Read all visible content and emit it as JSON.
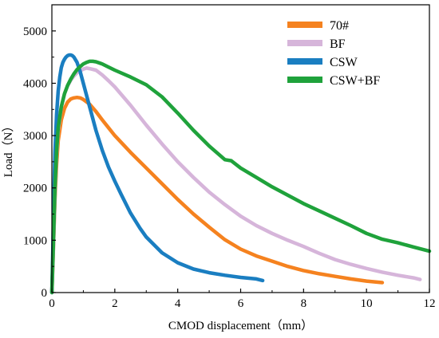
{
  "chart_data": {
    "type": "line",
    "title": "",
    "xlabel": "CMOD displacement（mm）",
    "ylabel": "Load（N）",
    "xlim": [
      0,
      12
    ],
    "ylim": [
      0,
      5500
    ],
    "xticks": [
      0,
      2,
      4,
      6,
      8,
      10,
      12
    ],
    "yticks": [
      0,
      1000,
      2000,
      3000,
      4000,
      5000
    ],
    "grid": false,
    "legend_position": "top-right",
    "series": [
      {
        "name": "70#",
        "color": "#F5821F",
        "points": [
          [
            0,
            0
          ],
          [
            0.05,
            900
          ],
          [
            0.1,
            1800
          ],
          [
            0.15,
            2450
          ],
          [
            0.2,
            2900
          ],
          [
            0.3,
            3300
          ],
          [
            0.4,
            3520
          ],
          [
            0.5,
            3640
          ],
          [
            0.6,
            3700
          ],
          [
            0.7,
            3720
          ],
          [
            0.8,
            3730
          ],
          [
            0.9,
            3720
          ],
          [
            1.0,
            3690
          ],
          [
            1.2,
            3600
          ],
          [
            1.4,
            3460
          ],
          [
            1.6,
            3300
          ],
          [
            1.8,
            3150
          ],
          [
            2.0,
            3000
          ],
          [
            2.5,
            2680
          ],
          [
            3.0,
            2380
          ],
          [
            3.5,
            2080
          ],
          [
            4.0,
            1780
          ],
          [
            4.5,
            1500
          ],
          [
            5.0,
            1250
          ],
          [
            5.5,
            1010
          ],
          [
            6.0,
            830
          ],
          [
            6.5,
            700
          ],
          [
            7.0,
            600
          ],
          [
            7.5,
            500
          ],
          [
            8.0,
            420
          ],
          [
            8.5,
            360
          ],
          [
            9.0,
            310
          ],
          [
            9.5,
            260
          ],
          [
            10.0,
            220
          ],
          [
            10.5,
            190
          ]
        ]
      },
      {
        "name": "BF",
        "color": "#D6B5DA",
        "points": [
          [
            0,
            0
          ],
          [
            0.05,
            900
          ],
          [
            0.1,
            1900
          ],
          [
            0.15,
            2650
          ],
          [
            0.2,
            3100
          ],
          [
            0.3,
            3550
          ],
          [
            0.4,
            3800
          ],
          [
            0.5,
            3950
          ],
          [
            0.6,
            4060
          ],
          [
            0.7,
            4140
          ],
          [
            0.8,
            4200
          ],
          [
            0.9,
            4240
          ],
          [
            1.0,
            4270
          ],
          [
            1.1,
            4290
          ],
          [
            1.2,
            4280
          ],
          [
            1.4,
            4250
          ],
          [
            1.6,
            4160
          ],
          [
            1.8,
            4050
          ],
          [
            2.0,
            3930
          ],
          [
            2.5,
            3580
          ],
          [
            3.0,
            3200
          ],
          [
            3.5,
            2840
          ],
          [
            4.0,
            2500
          ],
          [
            4.5,
            2200
          ],
          [
            5.0,
            1920
          ],
          [
            5.5,
            1680
          ],
          [
            6.0,
            1460
          ],
          [
            6.5,
            1280
          ],
          [
            7.0,
            1130
          ],
          [
            7.5,
            1000
          ],
          [
            8.0,
            880
          ],
          [
            8.5,
            750
          ],
          [
            9.0,
            630
          ],
          [
            9.5,
            540
          ],
          [
            10.0,
            460
          ],
          [
            10.5,
            390
          ],
          [
            11.0,
            330
          ],
          [
            11.5,
            280
          ],
          [
            11.7,
            250
          ]
        ]
      },
      {
        "name": "CSW",
        "color": "#1A7EC1",
        "points": [
          [
            0,
            0
          ],
          [
            0.03,
            800
          ],
          [
            0.06,
            1800
          ],
          [
            0.1,
            2700
          ],
          [
            0.15,
            3400
          ],
          [
            0.2,
            3850
          ],
          [
            0.25,
            4120
          ],
          [
            0.3,
            4300
          ],
          [
            0.35,
            4400
          ],
          [
            0.4,
            4460
          ],
          [
            0.45,
            4500
          ],
          [
            0.5,
            4530
          ],
          [
            0.55,
            4540
          ],
          [
            0.6,
            4540
          ],
          [
            0.65,
            4530
          ],
          [
            0.7,
            4500
          ],
          [
            0.8,
            4400
          ],
          [
            0.9,
            4220
          ],
          [
            1.0,
            4000
          ],
          [
            1.2,
            3550
          ],
          [
            1.4,
            3100
          ],
          [
            1.6,
            2720
          ],
          [
            1.8,
            2400
          ],
          [
            2.0,
            2130
          ],
          [
            2.2,
            1880
          ],
          [
            2.5,
            1520
          ],
          [
            2.8,
            1230
          ],
          [
            3.0,
            1060
          ],
          [
            3.5,
            760
          ],
          [
            4.0,
            570
          ],
          [
            4.5,
            450
          ],
          [
            5.0,
            380
          ],
          [
            5.5,
            330
          ],
          [
            6.0,
            290
          ],
          [
            6.5,
            260
          ],
          [
            6.7,
            230
          ]
        ]
      },
      {
        "name": "CSW+BF",
        "color": "#1FA23B",
        "points": [
          [
            0,
            0
          ],
          [
            0.05,
            1000
          ],
          [
            0.1,
            2000
          ],
          [
            0.15,
            2700
          ],
          [
            0.2,
            3150
          ],
          [
            0.3,
            3550
          ],
          [
            0.4,
            3800
          ],
          [
            0.5,
            3960
          ],
          [
            0.6,
            4080
          ],
          [
            0.7,
            4180
          ],
          [
            0.8,
            4260
          ],
          [
            0.9,
            4320
          ],
          [
            1.0,
            4370
          ],
          [
            1.1,
            4400
          ],
          [
            1.2,
            4420
          ],
          [
            1.3,
            4420
          ],
          [
            1.4,
            4410
          ],
          [
            1.6,
            4370
          ],
          [
            1.8,
            4310
          ],
          [
            2.0,
            4250
          ],
          [
            2.5,
            4120
          ],
          [
            3.0,
            3970
          ],
          [
            3.5,
            3740
          ],
          [
            4.0,
            3430
          ],
          [
            4.5,
            3100
          ],
          [
            5.0,
            2800
          ],
          [
            5.5,
            2540
          ],
          [
            5.7,
            2520
          ],
          [
            6.0,
            2380
          ],
          [
            6.5,
            2200
          ],
          [
            7.0,
            2020
          ],
          [
            7.5,
            1860
          ],
          [
            8.0,
            1700
          ],
          [
            8.5,
            1560
          ],
          [
            9.0,
            1420
          ],
          [
            9.5,
            1280
          ],
          [
            10.0,
            1130
          ],
          [
            10.5,
            1020
          ],
          [
            11.0,
            950
          ],
          [
            11.5,
            870
          ],
          [
            12.0,
            790
          ]
        ]
      }
    ]
  }
}
